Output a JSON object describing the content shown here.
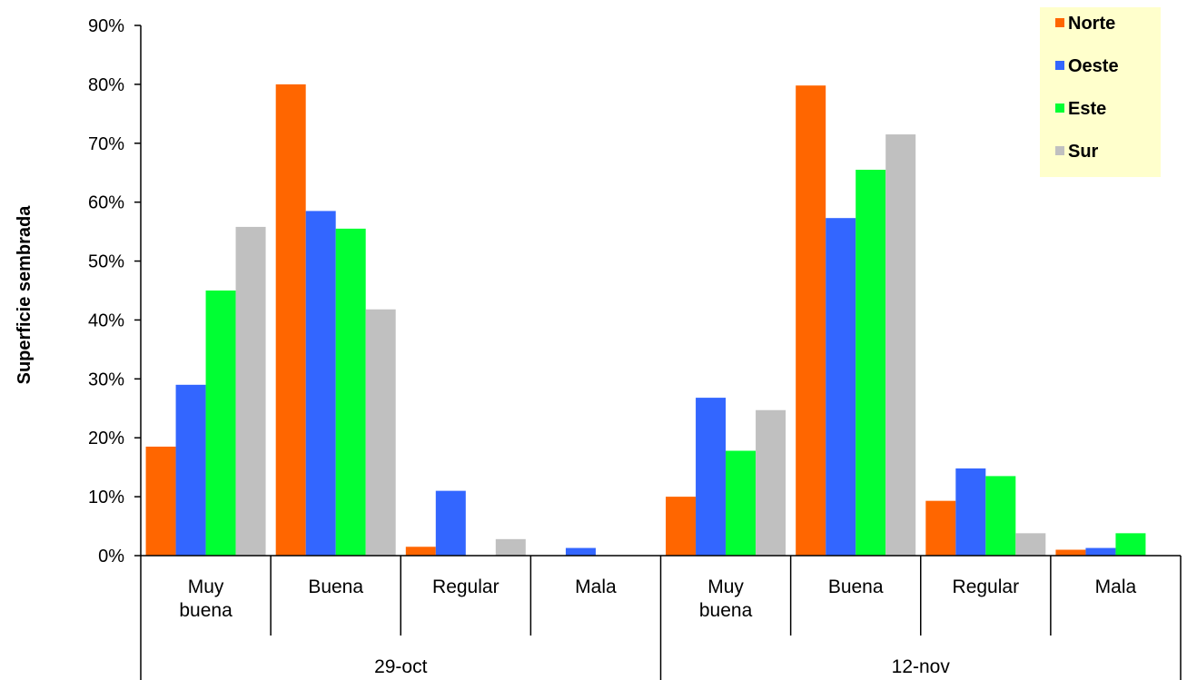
{
  "chart_data": {
    "type": "bar",
    "ylabel": "Superficie sembrada",
    "xlabel": "",
    "title": "",
    "ylim": [
      0,
      90
    ],
    "yticks": [
      "0%",
      "10%",
      "20%",
      "30%",
      "40%",
      "50%",
      "60%",
      "70%",
      "80%",
      "90%"
    ],
    "groups": [
      {
        "label": "29-oct",
        "categories": [
          "Muy buena",
          "Buena",
          "Regular",
          "Mala"
        ]
      },
      {
        "label": "12-nov",
        "categories": [
          "Muy buena",
          "Buena",
          "Regular",
          "Mala"
        ]
      }
    ],
    "categories": [
      "Muy buena",
      "Buena",
      "Regular",
      "Mala",
      "Muy buena",
      "Buena",
      "Regular",
      "Mala"
    ],
    "series": [
      {
        "name": "Norte",
        "color": "#FF6600",
        "values": [
          18.5,
          80,
          1.5,
          0,
          10,
          79.8,
          9.3,
          1
        ]
      },
      {
        "name": "Oeste",
        "color": "#3366FF",
        "values": [
          29,
          58.5,
          11,
          1.3,
          26.8,
          57.3,
          14.8,
          1.3
        ]
      },
      {
        "name": "Este",
        "color": "#00FF33",
        "values": [
          45,
          55.5,
          0,
          0,
          17.8,
          65.5,
          13.5,
          3.8
        ]
      },
      {
        "name": "Sur",
        "color": "#C0C0C0",
        "values": [
          55.8,
          41.8,
          2.8,
          0,
          24.7,
          71.5,
          3.8,
          0
        ]
      }
    ],
    "legend": {
      "position": "top-right",
      "background": "#FFFFCC"
    },
    "grid": false
  }
}
